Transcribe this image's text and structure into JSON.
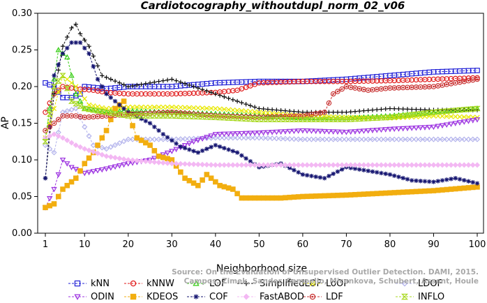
{
  "chart_data": {
    "type": "line",
    "title": "Cardiotocography_withoutdupl_norm_02_v06",
    "xlabel": "Neighborhood size",
    "ylabel": "AP",
    "xlim": [
      1,
      100
    ],
    "ylim": [
      0.0,
      0.3
    ],
    "xticks": [
      1,
      10,
      20,
      30,
      40,
      50,
      60,
      70,
      80,
      90,
      100
    ],
    "yticks": [
      "0.00",
      "0.05",
      "0.10",
      "0.15",
      "0.20",
      "0.25",
      "0.30"
    ],
    "grid": false,
    "legend_position": "bottom",
    "watermark": [
      "Source: On the Evaluation of Unsupervised Outlier Detection. DAMI, 2015.",
      "Campos, Zimek, Sander, Campello, Micenkova, Schubert, Assent, Houle"
    ],
    "series": [
      {
        "name": "kNN",
        "color": "#1f1fd6",
        "marker": "square",
        "points": [
          [
            1,
            0.205
          ],
          [
            3,
            0.2
          ],
          [
            5,
            0.185
          ],
          [
            7,
            0.185
          ],
          [
            9,
            0.19
          ],
          [
            10,
            0.2
          ],
          [
            15,
            0.197
          ],
          [
            20,
            0.2
          ],
          [
            30,
            0.2
          ],
          [
            40,
            0.205
          ],
          [
            50,
            0.207
          ],
          [
            60,
            0.207
          ],
          [
            70,
            0.21
          ],
          [
            80,
            0.215
          ],
          [
            90,
            0.22
          ],
          [
            100,
            0.222
          ]
        ]
      },
      {
        "name": "kNNW",
        "color": "#e01a1a",
        "marker": "circle",
        "points": [
          [
            1,
            0.165
          ],
          [
            3,
            0.19
          ],
          [
            5,
            0.2
          ],
          [
            8,
            0.197
          ],
          [
            12,
            0.195
          ],
          [
            15,
            0.192
          ],
          [
            20,
            0.19
          ],
          [
            30,
            0.19
          ],
          [
            40,
            0.192
          ],
          [
            45,
            0.195
          ],
          [
            50,
            0.205
          ],
          [
            60,
            0.207
          ],
          [
            70,
            0.207
          ],
          [
            80,
            0.208
          ],
          [
            90,
            0.21
          ],
          [
            100,
            0.212
          ]
        ]
      },
      {
        "name": "LOF",
        "color": "#33cc11",
        "marker": "triangle-up",
        "points": [
          [
            1,
            0.13
          ],
          [
            3,
            0.21
          ],
          [
            4,
            0.25
          ],
          [
            6,
            0.24
          ],
          [
            8,
            0.19
          ],
          [
            10,
            0.17
          ],
          [
            15,
            0.165
          ],
          [
            20,
            0.167
          ],
          [
            30,
            0.165
          ],
          [
            40,
            0.163
          ],
          [
            50,
            0.16
          ],
          [
            60,
            0.157
          ],
          [
            70,
            0.157
          ],
          [
            80,
            0.16
          ],
          [
            90,
            0.165
          ],
          [
            100,
            0.17
          ]
        ]
      },
      {
        "name": "SimplifiedLOF",
        "color": "#111111",
        "marker": "plus",
        "points": [
          [
            1,
            0.075
          ],
          [
            3,
            0.19
          ],
          [
            5,
            0.255
          ],
          [
            7,
            0.28
          ],
          [
            8,
            0.285
          ],
          [
            9,
            0.272
          ],
          [
            11,
            0.255
          ],
          [
            14,
            0.215
          ],
          [
            20,
            0.2
          ],
          [
            30,
            0.21
          ],
          [
            40,
            0.19
          ],
          [
            50,
            0.17
          ],
          [
            60,
            0.165
          ],
          [
            70,
            0.165
          ],
          [
            80,
            0.17
          ],
          [
            90,
            0.168
          ],
          [
            100,
            0.168
          ]
        ]
      },
      {
        "name": "LoOP",
        "color": "#e8e800",
        "marker": "x",
        "points": [
          [
            1,
            0.13
          ],
          [
            3,
            0.17
          ],
          [
            5,
            0.215
          ],
          [
            8,
            0.2
          ],
          [
            11,
            0.175
          ],
          [
            15,
            0.17
          ],
          [
            20,
            0.172
          ],
          [
            30,
            0.172
          ],
          [
            40,
            0.17
          ],
          [
            50,
            0.165
          ],
          [
            60,
            0.16
          ],
          [
            70,
            0.158
          ],
          [
            80,
            0.157
          ],
          [
            90,
            0.16
          ],
          [
            100,
            0.158
          ]
        ]
      },
      {
        "name": "LDOF",
        "color": "#b3b3ec",
        "marker": "diamond",
        "points": [
          [
            1,
            0.12
          ],
          [
            3,
            0.11
          ],
          [
            5,
            0.165
          ],
          [
            8,
            0.17
          ],
          [
            10,
            0.145
          ],
          [
            12,
            0.12
          ],
          [
            15,
            0.115
          ],
          [
            20,
            0.128
          ],
          [
            30,
            0.128
          ],
          [
            40,
            0.13
          ],
          [
            50,
            0.13
          ],
          [
            60,
            0.128
          ],
          [
            70,
            0.128
          ],
          [
            80,
            0.128
          ],
          [
            90,
            0.128
          ],
          [
            100,
            0.128
          ]
        ]
      },
      {
        "name": "ODIN",
        "color": "#9b30e0",
        "marker": "triangle-down",
        "points": [
          [
            1,
            0.035
          ],
          [
            3,
            0.06
          ],
          [
            5,
            0.1
          ],
          [
            7,
            0.09
          ],
          [
            10,
            0.082
          ],
          [
            15,
            0.088
          ],
          [
            20,
            0.095
          ],
          [
            25,
            0.1
          ],
          [
            30,
            0.112
          ],
          [
            35,
            0.125
          ],
          [
            40,
            0.135
          ],
          [
            50,
            0.137
          ],
          [
            60,
            0.14
          ],
          [
            70,
            0.138
          ],
          [
            80,
            0.142
          ],
          [
            90,
            0.145
          ],
          [
            100,
            0.155
          ]
        ]
      },
      {
        "name": "KDEOS",
        "color": "#f2ae10",
        "marker": "square-x",
        "points": [
          [
            1,
            0.035
          ],
          [
            3,
            0.04
          ],
          [
            5,
            0.06
          ],
          [
            8,
            0.075
          ],
          [
            10,
            0.095
          ],
          [
            12,
            0.11
          ],
          [
            15,
            0.14
          ],
          [
            17,
            0.17
          ],
          [
            19,
            0.18
          ],
          [
            22,
            0.13
          ],
          [
            25,
            0.12
          ],
          [
            27,
            0.105
          ],
          [
            30,
            0.1
          ],
          [
            33,
            0.075
          ],
          [
            36,
            0.065
          ],
          [
            38,
            0.08
          ],
          [
            41,
            0.065
          ],
          [
            44,
            0.06
          ],
          [
            46,
            0.048
          ],
          [
            55,
            0.048
          ],
          [
            60,
            0.05
          ],
          [
            70,
            0.052
          ],
          [
            80,
            0.055
          ],
          [
            90,
            0.058
          ],
          [
            100,
            0.063
          ]
        ]
      },
      {
        "name": "COF",
        "color": "#141470",
        "marker": "asterisk",
        "points": [
          [
            1,
            0.075
          ],
          [
            3,
            0.215
          ],
          [
            5,
            0.245
          ],
          [
            7,
            0.26
          ],
          [
            9,
            0.26
          ],
          [
            11,
            0.245
          ],
          [
            13,
            0.21
          ],
          [
            15,
            0.19
          ],
          [
            18,
            0.175
          ],
          [
            20,
            0.165
          ],
          [
            25,
            0.15
          ],
          [
            28,
            0.135
          ],
          [
            32,
            0.118
          ],
          [
            36,
            0.11
          ],
          [
            40,
            0.12
          ],
          [
            45,
            0.11
          ],
          [
            50,
            0.09
          ],
          [
            55,
            0.095
          ],
          [
            60,
            0.08
          ],
          [
            65,
            0.075
          ],
          [
            70,
            0.09
          ],
          [
            75,
            0.085
          ],
          [
            80,
            0.08
          ],
          [
            85,
            0.072
          ],
          [
            90,
            0.07
          ],
          [
            95,
            0.075
          ],
          [
            100,
            0.068
          ]
        ]
      },
      {
        "name": "FastABOD",
        "color": "#f3b8f3",
        "marker": "diamond-filled",
        "points": [
          [
            1,
            0.13
          ],
          [
            3,
            0.135
          ],
          [
            5,
            0.13
          ],
          [
            8,
            0.12
          ],
          [
            10,
            0.115
          ],
          [
            15,
            0.105
          ],
          [
            20,
            0.1
          ],
          [
            30,
            0.095
          ],
          [
            40,
            0.093
          ],
          [
            50,
            0.093
          ],
          [
            60,
            0.093
          ],
          [
            70,
            0.093
          ],
          [
            80,
            0.093
          ],
          [
            90,
            0.093
          ],
          [
            100,
            0.093
          ]
        ]
      },
      {
        "name": "LDF",
        "color": "#c83232",
        "marker": "circle-dot",
        "points": [
          [
            1,
            0.14
          ],
          [
            3,
            0.15
          ],
          [
            5,
            0.16
          ],
          [
            8,
            0.16
          ],
          [
            10,
            0.158
          ],
          [
            15,
            0.16
          ],
          [
            20,
            0.162
          ],
          [
            30,
            0.165
          ],
          [
            40,
            0.16
          ],
          [
            50,
            0.158
          ],
          [
            60,
            0.16
          ],
          [
            65,
            0.165
          ],
          [
            67,
            0.19
          ],
          [
            70,
            0.2
          ],
          [
            75,
            0.195
          ],
          [
            80,
            0.198
          ],
          [
            90,
            0.2
          ],
          [
            100,
            0.21
          ]
        ]
      },
      {
        "name": "INFLO",
        "color": "#a8d820",
        "marker": "hourglass",
        "points": [
          [
            1,
            0.125
          ],
          [
            3,
            0.2
          ],
          [
            5,
            0.215
          ],
          [
            7,
            0.18
          ],
          [
            10,
            0.17
          ],
          [
            15,
            0.165
          ],
          [
            20,
            0.16
          ],
          [
            30,
            0.16
          ],
          [
            40,
            0.158
          ],
          [
            50,
            0.155
          ],
          [
            60,
            0.155
          ],
          [
            70,
            0.155
          ],
          [
            80,
            0.158
          ],
          [
            90,
            0.165
          ],
          [
            100,
            0.17
          ]
        ]
      }
    ]
  }
}
